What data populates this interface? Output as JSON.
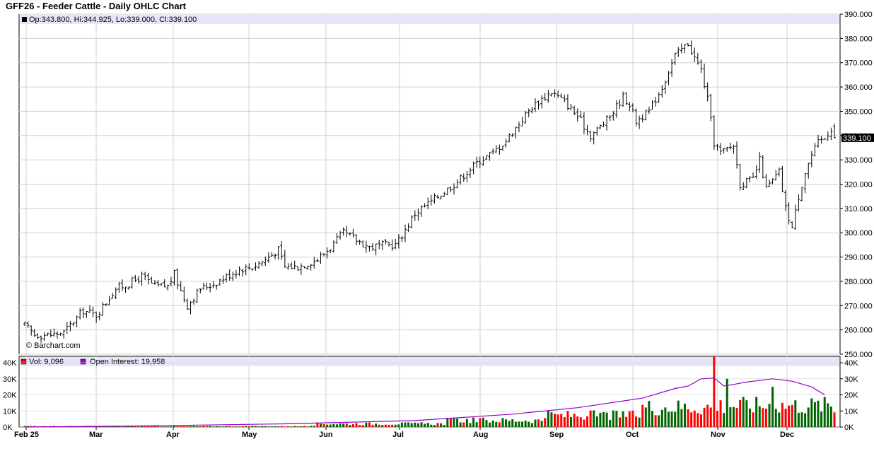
{
  "header": {
    "title": "GFF26 - Feeder Cattle - Daily OHLC Chart",
    "ohlc_readout": "Op:343.800, Hi:344.925, Lo:339.000, Cl:339.100",
    "watermark": "© Barchart.com",
    "last_price_tag": "339.100"
  },
  "volume_legend": {
    "vol_label": "Vol: 9,096",
    "oi_label": "Open Interest: 19,958"
  },
  "colors": {
    "up_volume": "#006400",
    "down_volume": "#ff0000",
    "open_interest": "#9900cc",
    "legend_band": "#e6e6fa",
    "grid": "#d0d0d0",
    "bars": "#000000"
  },
  "chart_data": [
    {
      "type": "ohlc",
      "title": "GFF26 - Feeder Cattle - Daily OHLC Chart",
      "x_ticks": [
        "Feb 25",
        "Mar",
        "Apr",
        "May",
        "Jun",
        "Jul",
        "Aug",
        "Sep",
        "Oct",
        "Nov",
        "Dec"
      ],
      "y_ticks": [
        "390.000",
        "380.000",
        "370.000",
        "360.000",
        "350.000",
        "340.000",
        "330.000",
        "320.000",
        "310.000",
        "300.000",
        "290.000",
        "280.000",
        "270.000",
        "260.000",
        "250.000"
      ],
      "ylim": [
        250,
        390
      ],
      "grid": true,
      "last": {
        "open": 343.8,
        "high": 344.925,
        "low": 339.0,
        "close": 339.1
      },
      "close_path": [
        [
          0,
          262
        ],
        [
          3,
          258
        ],
        [
          8,
          258
        ],
        [
          12,
          259
        ],
        [
          18,
          268
        ],
        [
          22,
          266
        ],
        [
          28,
          277
        ],
        [
          32,
          279
        ],
        [
          36,
          282
        ],
        [
          40,
          278
        ],
        [
          44,
          278
        ],
        [
          46,
          283
        ],
        [
          48,
          276
        ],
        [
          50,
          270
        ],
        [
          54,
          277
        ],
        [
          58,
          279
        ],
        [
          62,
          282
        ],
        [
          66,
          285
        ],
        [
          70,
          286
        ],
        [
          74,
          289
        ],
        [
          78,
          293
        ],
        [
          80,
          286
        ],
        [
          84,
          286
        ],
        [
          90,
          289
        ],
        [
          94,
          294
        ],
        [
          98,
          300
        ],
        [
          102,
          297
        ],
        [
          106,
          294
        ],
        [
          110,
          295
        ],
        [
          114,
          295
        ],
        [
          116,
          299
        ],
        [
          120,
          308
        ],
        [
          124,
          312
        ],
        [
          128,
          316
        ],
        [
          132,
          320
        ],
        [
          136,
          325
        ],
        [
          140,
          330
        ],
        [
          144,
          333
        ],
        [
          148,
          338
        ],
        [
          152,
          345
        ],
        [
          156,
          352
        ],
        [
          160,
          356
        ],
        [
          162,
          358
        ],
        [
          166,
          354
        ],
        [
          170,
          348
        ],
        [
          174,
          340
        ],
        [
          178,
          345
        ],
        [
          180,
          348
        ],
        [
          184,
          356
        ],
        [
          186,
          353
        ],
        [
          188,
          346
        ],
        [
          192,
          350
        ],
        [
          196,
          360
        ],
        [
          200,
          373
        ],
        [
          204,
          378
        ],
        [
          206,
          372
        ],
        [
          208,
          367
        ],
        [
          210,
          355
        ],
        [
          212,
          337
        ],
        [
          214,
          333
        ],
        [
          218,
          336
        ],
        [
          220,
          320
        ],
        [
          224,
          322
        ],
        [
          226,
          330
        ],
        [
          228,
          318
        ],
        [
          232,
          325
        ],
        [
          234,
          310
        ],
        [
          236,
          302
        ],
        [
          238,
          315
        ],
        [
          240,
          325
        ],
        [
          242,
          332
        ],
        [
          244,
          337
        ],
        [
          246,
          339
        ],
        [
          248,
          343
        ],
        [
          249,
          339
        ]
      ]
    },
    {
      "type": "bar",
      "title": "",
      "series": [
        {
          "name": "Vol",
          "color": "#006400",
          "last": 9096
        },
        {
          "name": "Open Interest",
          "color": "#9900cc",
          "last": 19958
        }
      ],
      "left_ticks": [
        "40K",
        "30K",
        "20K",
        "10K",
        "0K"
      ],
      "right_ticks": [
        "40K",
        "30K",
        "20K",
        "10K",
        "0K"
      ],
      "ylim": [
        0,
        44000
      ],
      "volume_segments": [
        {
          "from": 0,
          "to": 90,
          "base": 500
        },
        {
          "from": 90,
          "to": 130,
          "base": 2000
        },
        {
          "from": 130,
          "to": 160,
          "base": 4000
        },
        {
          "from": 160,
          "to": 190,
          "base": 7000
        },
        {
          "from": 190,
          "to": 212,
          "base": 12000
        },
        {
          "from": 212,
          "to": 250,
          "base": 13000
        }
      ],
      "volume_spikes": [
        {
          "day": 212,
          "value": 44000
        },
        {
          "day": 216,
          "value": 30000
        },
        {
          "day": 230,
          "value": 25000
        }
      ],
      "open_interest_path": [
        [
          0,
          0
        ],
        [
          40,
          800
        ],
        [
          80,
          2000
        ],
        [
          120,
          4000
        ],
        [
          150,
          8000
        ],
        [
          170,
          12000
        ],
        [
          190,
          18000
        ],
        [
          200,
          24000
        ],
        [
          204,
          25500
        ],
        [
          208,
          30000
        ],
        [
          212,
          30500
        ],
        [
          215,
          25500
        ],
        [
          218,
          26500
        ],
        [
          222,
          28000
        ],
        [
          230,
          30000
        ],
        [
          236,
          28500
        ],
        [
          242,
          25000
        ],
        [
          246,
          20000
        ]
      ]
    }
  ]
}
